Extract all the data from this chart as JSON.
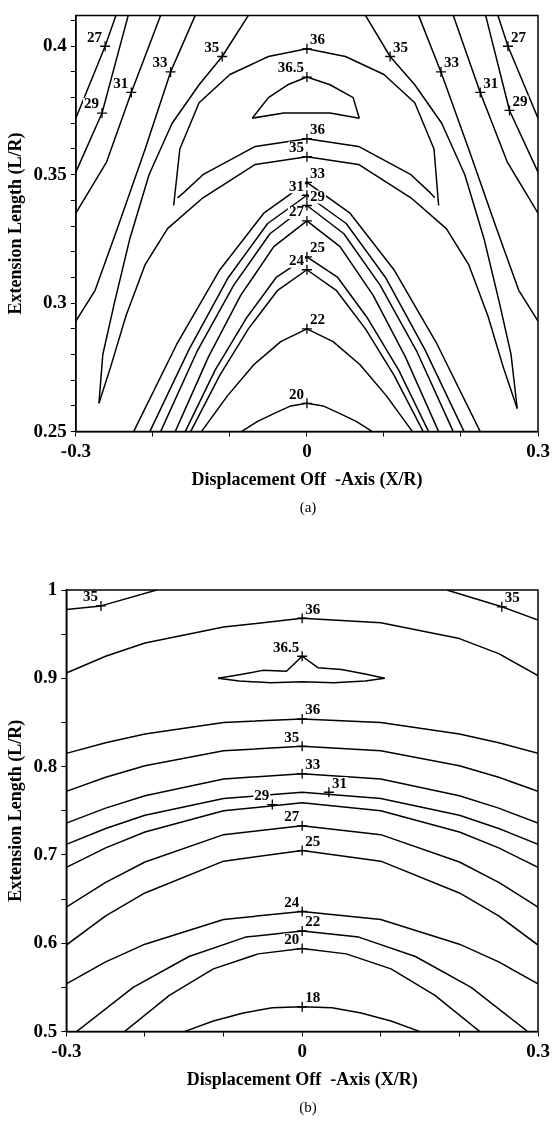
{
  "chart_data": [
    {
      "type": "line",
      "xlabel": "Displacement Off  -Axis (X/R)",
      "ylabel": "Extension Length (L/R)",
      "xlim": [
        -0.3,
        0.3
      ],
      "ylim": [
        0.25,
        0.412
      ],
      "marker": "none",
      "grid": false,
      "legend": false,
      "xticks": [
        -0.3,
        {
          "value": -0.2,
          "label": null
        },
        {
          "value": -0.1,
          "label": null
        },
        0,
        {
          "value": 0.1,
          "label": null
        },
        {
          "value": 0.2,
          "label": null
        },
        0.3
      ],
      "yticks": [
        0.25,
        {
          "value": 0.26,
          "label": null
        },
        {
          "value": 0.27,
          "label": null
        },
        {
          "value": 0.28,
          "label": null
        },
        {
          "value": 0.29,
          "label": null
        },
        0.3,
        {
          "value": 0.31,
          "label": null
        },
        {
          "value": 0.32,
          "label": null
        },
        {
          "value": 0.33,
          "label": null
        },
        {
          "value": 0.34,
          "label": null
        },
        0.35,
        {
          "value": 0.36,
          "label": null
        },
        {
          "value": 0.37,
          "label": null
        },
        {
          "value": 0.38,
          "label": null
        },
        {
          "value": 0.39,
          "label": null
        },
        0.4,
        {
          "value": 0.41,
          "label": null
        }
      ],
      "series": [
        {
          "color": "#000000",
          "x": [
            -0.3,
            -0.262,
            -0.248
          ],
          "values": [
            0.372,
            0.4,
            0.412
          ]
        },
        {
          "color": "#000000",
          "x": [
            -0.3,
            -0.266,
            -0.232
          ],
          "values": [
            0.351,
            0.374,
            0.412
          ]
        },
        {
          "color": "#000000",
          "x": [
            -0.3,
            -0.26,
            -0.228,
            -0.19
          ],
          "values": [
            0.335,
            0.355,
            0.382,
            0.412
          ]
        },
        {
          "color": "#000000",
          "x": [
            -0.3,
            -0.275,
            -0.245,
            -0.21,
            -0.177,
            -0.145
          ],
          "values": [
            0.293,
            0.305,
            0.33,
            0.36,
            0.39,
            0.412
          ]
        },
        {
          "color": "#000000",
          "x": [
            0.248,
            0.261,
            0.3
          ],
          "values": [
            0.412,
            0.4,
            0.372
          ]
        },
        {
          "color": "#000000",
          "x": [
            0.232,
            0.263,
            0.3
          ],
          "values": [
            0.412,
            0.375,
            0.351
          ]
        },
        {
          "color": "#000000",
          "x": [
            0.19,
            0.225,
            0.26,
            0.3
          ],
          "values": [
            0.412,
            0.382,
            0.355,
            0.335
          ]
        },
        {
          "color": "#000000",
          "x": [
            0.145,
            0.174,
            0.21,
            0.245,
            0.275,
            0.3
          ],
          "values": [
            0.412,
            0.39,
            0.36,
            0.33,
            0.305,
            0.293
          ]
        },
        {
          "color": "#000000",
          "x": [
            -0.27,
            -0.265,
            -0.25,
            -0.23,
            -0.205,
            -0.175,
            -0.14,
            -0.11,
            -0.076
          ],
          "values": [
            0.261,
            0.28,
            0.3,
            0.325,
            0.35,
            0.37,
            0.385,
            0.396,
            0.412
          ]
        },
        {
          "color": "#000000",
          "x": [
            -0.27,
            -0.255,
            -0.235,
            -0.21,
            -0.181,
            -0.135,
            -0.067,
            0,
            0.067,
            0.135,
            0.181,
            0.21,
            0.235,
            0.255,
            0.273
          ],
          "values": [
            0.261,
            0.275,
            0.295,
            0.315,
            0.329,
            0.341,
            0.354,
            0.357,
            0.354,
            0.341,
            0.329,
            0.315,
            0.295,
            0.275,
            0.259
          ]
        },
        {
          "color": "#000000",
          "x": [
            0.076,
            0.108,
            0.14,
            0.175,
            0.205,
            0.23,
            0.25,
            0.265,
            0.273
          ],
          "values": [
            0.412,
            0.396,
            0.385,
            0.37,
            0.35,
            0.325,
            0.3,
            0.28,
            0.259
          ]
        },
        {
          "color": "#000000",
          "x": [
            -0.173,
            -0.165,
            -0.14,
            -0.1,
            -0.05,
            0,
            0.05,
            0.1,
            0.14,
            0.165,
            0.171
          ],
          "values": [
            0.338,
            0.36,
            0.378,
            0.389,
            0.396,
            0.399,
            0.396,
            0.389,
            0.378,
            0.36,
            0.338
          ]
        },
        {
          "color": "#000000",
          "x": [
            -0.168,
            -0.16,
            -0.135,
            -0.067,
            0,
            0.067,
            0.135,
            0.16,
            0.166
          ],
          "values": [
            0.341,
            0.343,
            0.35,
            0.361,
            0.364,
            0.361,
            0.35,
            0.343,
            0.341
          ]
        },
        {
          "color": "#000000",
          "x": [
            -0.071,
            -0.05,
            -0.025,
            0,
            0.03,
            0.06,
            0.068
          ],
          "values": [
            0.372,
            0.38,
            0.385,
            0.388,
            0.385,
            0.38,
            0.372
          ]
        },
        {
          "color": "#000000",
          "x": [
            -0.071,
            -0.03,
            0,
            0.03,
            0.068
          ],
          "values": [
            0.372,
            0.374,
            0.374,
            0.374,
            0.372
          ]
        },
        {
          "color": "#000000",
          "x": [
            -0.225,
            -0.169,
            -0.113,
            -0.056,
            0,
            0.056,
            0.113,
            0.169,
            0.225
          ],
          "values": [
            0.25,
            0.284,
            0.313,
            0.335,
            0.347,
            0.335,
            0.313,
            0.284,
            0.25
          ]
        },
        {
          "color": "#000000",
          "x": [
            -0.204,
            -0.153,
            -0.102,
            -0.051,
            0,
            0.051,
            0.102,
            0.153,
            0.204
          ],
          "values": [
            0.25,
            0.282,
            0.31,
            0.331,
            0.342,
            0.331,
            0.31,
            0.282,
            0.25
          ]
        },
        {
          "color": "#000000",
          "x": [
            -0.19,
            -0.143,
            -0.095,
            -0.048,
            0,
            0.048,
            0.095,
            0.143,
            0.19
          ],
          "values": [
            0.25,
            0.281,
            0.307,
            0.327,
            0.338,
            0.327,
            0.307,
            0.281,
            0.25
          ]
        },
        {
          "color": "#000000",
          "x": [
            -0.171,
            -0.128,
            -0.086,
            -0.043,
            0,
            0.043,
            0.086,
            0.128,
            0.171
          ],
          "values": [
            0.25,
            0.279,
            0.303,
            0.322,
            0.332,
            0.322,
            0.303,
            0.279,
            0.25
          ]
        },
        {
          "color": "#000000",
          "x": [
            -0.158,
            -0.119,
            -0.079,
            -0.04,
            0,
            0.04,
            0.079,
            0.119,
            0.158
          ],
          "values": [
            0.25,
            0.274,
            0.294,
            0.31,
            0.318,
            0.31,
            0.294,
            0.274,
            0.25
          ]
        },
        {
          "color": "#000000",
          "x": [
            -0.151,
            -0.113,
            -0.076,
            -0.038,
            0,
            0.038,
            0.076,
            0.113,
            0.151
          ],
          "values": [
            0.25,
            0.272,
            0.29,
            0.305,
            0.313,
            0.305,
            0.29,
            0.272,
            0.25
          ]
        },
        {
          "color": "#000000",
          "x": [
            -0.137,
            -0.103,
            -0.069,
            -0.034,
            0,
            0.034,
            0.069,
            0.103,
            0.137
          ],
          "values": [
            0.25,
            0.264,
            0.276,
            0.285,
            0.29,
            0.285,
            0.276,
            0.264,
            0.25
          ]
        },
        {
          "color": "#000000",
          "x": [
            -0.085,
            -0.064,
            -0.043,
            -0.021,
            0,
            0.021,
            0.043,
            0.064,
            0.085
          ],
          "values": [
            0.25,
            0.254,
            0.257,
            0.26,
            0.261,
            0.26,
            0.257,
            0.254,
            0.25
          ]
        }
      ],
      "annotations": [
        {
          "text": "27",
          "x": -0.262,
          "y": 0.4
        },
        {
          "text": "29",
          "x": -0.266,
          "y": 0.374
        },
        {
          "text": "31",
          "x": -0.228,
          "y": 0.382
        },
        {
          "text": "33",
          "x": -0.177,
          "y": 0.39
        },
        {
          "text": "35",
          "x": -0.11,
          "y": 0.396
        },
        {
          "text": "35",
          "x": 0.108,
          "y": 0.396
        },
        {
          "text": "33",
          "x": 0.174,
          "y": 0.39
        },
        {
          "text": "31",
          "x": 0.225,
          "y": 0.382
        },
        {
          "text": "29",
          "x": 0.263,
          "y": 0.375
        },
        {
          "text": "27",
          "x": 0.261,
          "y": 0.4
        },
        {
          "text": "36",
          "x": 0,
          "y": 0.399
        },
        {
          "text": "36.5",
          "x": 0,
          "y": 0.388
        },
        {
          "text": "36",
          "x": 0,
          "y": 0.364
        },
        {
          "text": "35",
          "x": 0,
          "y": 0.357
        },
        {
          "text": "33",
          "x": 0,
          "y": 0.347
        },
        {
          "text": "31",
          "x": 0,
          "y": 0.342
        },
        {
          "text": "29",
          "x": 0,
          "y": 0.338
        },
        {
          "text": "27",
          "x": 0,
          "y": 0.332
        },
        {
          "text": "25",
          "x": 0,
          "y": 0.318
        },
        {
          "text": "24",
          "x": 0,
          "y": 0.313
        },
        {
          "text": "22",
          "x": 0,
          "y": 0.29
        },
        {
          "text": "20",
          "x": 0,
          "y": 0.261
        },
        "(a)"
      ]
    },
    {
      "type": "line",
      "xlabel": "Displacement Off  -Axis (X/R)",
      "ylabel": "Extension Length (L/R)",
      "xlim": [
        -0.3,
        0.3
      ],
      "ylim": [
        0.5,
        1
      ],
      "marker": "none",
      "grid": false,
      "legend": false,
      "xticks": [
        -0.3,
        {
          "value": -0.2,
          "label": null
        },
        {
          "value": -0.1,
          "label": null
        },
        0,
        {
          "value": 0.1,
          "label": null
        },
        {
          "value": 0.2,
          "label": null
        },
        0.3
      ],
      "yticks": [
        0.5,
        {
          "value": 0.55,
          "label": null
        },
        0.6,
        {
          "value": 0.65,
          "label": null
        },
        0.7,
        {
          "value": 0.75,
          "label": null
        },
        0.8,
        {
          "value": 0.85,
          "label": null
        },
        0.9,
        {
          "value": 0.95,
          "label": null
        },
        1
      ],
      "series": [
        {
          "color": "#000000",
          "x": [
            -0.3,
            -0.256,
            -0.185
          ],
          "values": [
            0.978,
            0.982,
            1
          ]
        },
        {
          "color": "#000000",
          "x": [
            0.184,
            0.254,
            0.3
          ],
          "values": [
            1,
            0.981,
            0.966
          ]
        },
        {
          "color": "#000000",
          "x": [
            -0.3,
            -0.25,
            -0.2,
            -0.1,
            0,
            0.1,
            0.2,
            0.25,
            0.3
          ],
          "values": [
            0.906,
            0.925,
            0.94,
            0.958,
            0.968,
            0.963,
            0.945,
            0.928,
            0.903
          ]
        },
        {
          "color": "#000000",
          "x": [
            -0.107,
            -0.08,
            -0.05,
            -0.02,
            0,
            0.02,
            0.05,
            0.08,
            0.105
          ],
          "values": [
            0.9,
            0.904,
            0.909,
            0.908,
            0.925,
            0.912,
            0.91,
            0.905,
            0.9
          ]
        },
        {
          "color": "#000000",
          "x": [
            -0.107,
            -0.08,
            -0.04,
            0,
            0.04,
            0.08,
            0.105
          ],
          "values": [
            0.9,
            0.897,
            0.895,
            0.896,
            0.895,
            0.897,
            0.9
          ]
        },
        {
          "color": "#000000",
          "x": [
            -0.3,
            -0.25,
            -0.2,
            -0.1,
            0,
            0.1,
            0.2,
            0.25,
            0.3
          ],
          "values": [
            0.815,
            0.827,
            0.837,
            0.85,
            0.854,
            0.85,
            0.837,
            0.827,
            0.815
          ]
        },
        {
          "color": "#000000",
          "x": [
            -0.3,
            -0.25,
            -0.2,
            -0.1,
            0,
            0.1,
            0.2,
            0.25,
            0.3
          ],
          "values": [
            0.772,
            0.788,
            0.801,
            0.818,
            0.823,
            0.818,
            0.801,
            0.788,
            0.772
          ]
        },
        {
          "color": "#000000",
          "x": [
            -0.3,
            -0.25,
            -0.2,
            -0.1,
            0,
            0.1,
            0.2,
            0.25,
            0.3
          ],
          "values": [
            0.736,
            0.753,
            0.767,
            0.786,
            0.792,
            0.786,
            0.767,
            0.753,
            0.736
          ]
        },
        {
          "color": "#000000",
          "x": [
            -0.3,
            -0.25,
            -0.2,
            -0.1,
            0,
            0.1,
            0.2,
            0.25,
            0.3
          ],
          "values": [
            0.712,
            0.73,
            0.745,
            0.764,
            0.771,
            0.764,
            0.745,
            0.73,
            0.712
          ]
        },
        {
          "color": "#000000",
          "x": [
            -0.3,
            -0.25,
            -0.2,
            -0.1,
            0,
            0.1,
            0.2,
            0.25,
            0.3
          ],
          "values": [
            0.686,
            0.708,
            0.726,
            0.75,
            0.759,
            0.75,
            0.726,
            0.708,
            0.686
          ]
        },
        {
          "color": "#000000",
          "x": [
            -0.3,
            -0.25,
            -0.2,
            -0.1,
            0,
            0.1,
            0.2,
            0.25,
            0.3
          ],
          "values": [
            0.641,
            0.669,
            0.692,
            0.723,
            0.733,
            0.723,
            0.692,
            0.669,
            0.641
          ]
        },
        {
          "color": "#000000",
          "x": [
            -0.3,
            -0.25,
            -0.2,
            -0.1,
            0,
            0.1,
            0.2,
            0.25,
            0.3
          ],
          "values": [
            0.598,
            0.631,
            0.657,
            0.693,
            0.705,
            0.693,
            0.657,
            0.631,
            0.598
          ]
        },
        {
          "color": "#000000",
          "x": [
            -0.3,
            -0.25,
            -0.2,
            -0.1,
            0,
            0.1,
            0.2,
            0.25,
            0.3
          ],
          "values": [
            0.554,
            0.579,
            0.599,
            0.627,
            0.636,
            0.627,
            0.599,
            0.579,
            0.554
          ]
        },
        {
          "color": "#000000",
          "x": [
            -0.287,
            -0.215,
            -0.144,
            -0.072,
            0,
            0.072,
            0.144,
            0.215,
            0.287
          ],
          "values": [
            0.5,
            0.55,
            0.585,
            0.607,
            0.614,
            0.607,
            0.585,
            0.55,
            0.5
          ]
        },
        {
          "color": "#000000",
          "x": [
            -0.226,
            -0.169,
            -0.113,
            -0.056,
            0,
            0.056,
            0.113,
            0.169,
            0.226
          ],
          "values": [
            0.5,
            0.541,
            0.571,
            0.588,
            0.594,
            0.588,
            0.571,
            0.541,
            0.5
          ]
        },
        {
          "color": "#000000",
          "x": [
            -0.15,
            -0.113,
            -0.075,
            -0.038,
            0,
            0.038,
            0.075,
            0.113,
            0.15
          ],
          "values": [
            0.5,
            0.512,
            0.521,
            0.527,
            0.528,
            0.527,
            0.521,
            0.512,
            0.5
          ]
        }
      ],
      "annotations": [
        {
          "text": "35",
          "x": -0.256,
          "y": 0.982
        },
        {
          "text": "35",
          "x": 0.254,
          "y": 0.981
        },
        {
          "text": "36",
          "x": 0,
          "y": 0.968
        },
        {
          "text": "36.5",
          "x": 0,
          "y": 0.925
        },
        {
          "text": "36",
          "x": 0,
          "y": 0.854
        },
        {
          "text": "35",
          "x": 0,
          "y": 0.823
        },
        {
          "text": "33",
          "x": 0,
          "y": 0.792
        },
        {
          "text": "31",
          "x": 0.034,
          "y": 0.771
        },
        {
          "text": "29",
          "x": -0.038,
          "y": 0.757
        },
        {
          "text": "27",
          "x": 0,
          "y": 0.733
        },
        {
          "text": "25",
          "x": 0,
          "y": 0.705
        },
        {
          "text": "24",
          "x": 0,
          "y": 0.636
        },
        {
          "text": "22",
          "x": 0,
          "y": 0.614
        },
        {
          "text": "20",
          "x": 0,
          "y": 0.594
        },
        {
          "text": "18",
          "x": 0,
          "y": 0.528
        },
        "(b)"
      ]
    }
  ]
}
